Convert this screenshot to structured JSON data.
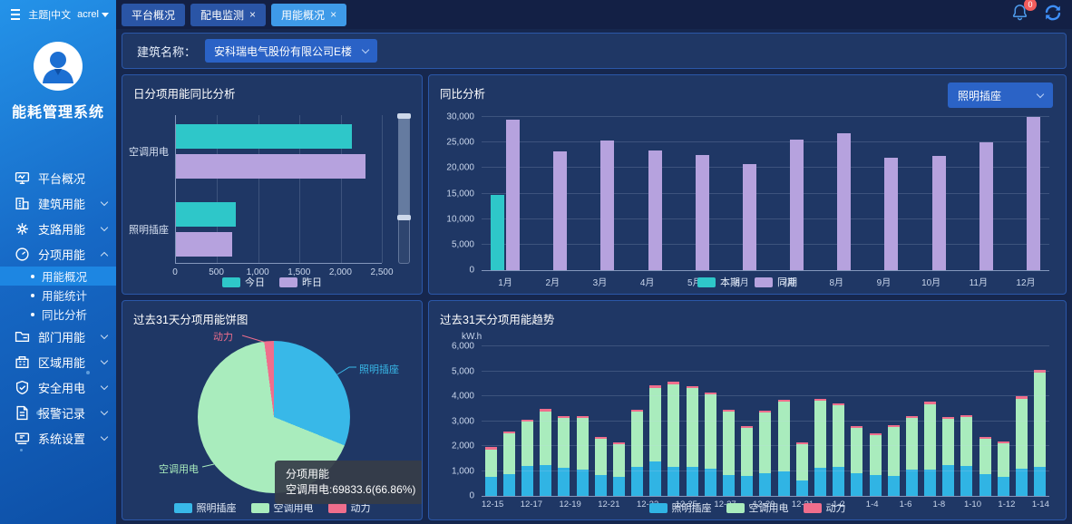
{
  "colors": {
    "teal": "#2EC7C9",
    "purple": "#B6A2DE",
    "sky_blue": "#38B8E8",
    "mint_green": "#A9ECBD",
    "pink": "#EF6E8C",
    "badge_red": "#F25C5C",
    "accent_blue": "#3E9AE8"
  },
  "sidebar": {
    "theme_lang": "主题|中文",
    "user": "acrel",
    "app_title": "能耗管理系统",
    "items": [
      {
        "label": "平台概况"
      },
      {
        "label": "建筑用能"
      },
      {
        "label": "支路用能"
      },
      {
        "label": "分项用能"
      },
      {
        "label": "部门用能"
      },
      {
        "label": "区域用能"
      },
      {
        "label": "安全用电"
      },
      {
        "label": "报警记录"
      },
      {
        "label": "系统设置"
      }
    ],
    "submenu": [
      {
        "label": "用能概况"
      },
      {
        "label": "用能统计"
      },
      {
        "label": "同比分析"
      }
    ]
  },
  "topbar": {
    "tabs": [
      {
        "label": "平台概况"
      },
      {
        "label": "配电监测"
      },
      {
        "label": "用能概况"
      }
    ],
    "notification_count": "0"
  },
  "toolbar": {
    "building_label": "建筑名称：",
    "building_value": "安科瑞电气股份有限公司E楼"
  },
  "chart_data": [
    {
      "type": "bar",
      "orientation": "horizontal",
      "title": "日分项用能同比分析",
      "categories": [
        "空调用电",
        "照明插座"
      ],
      "series": [
        {
          "name": "今日",
          "color": "#2EC7C9",
          "values": [
            2140,
            730
          ]
        },
        {
          "name": "昨日",
          "color": "#B6A2DE",
          "values": [
            2300,
            680
          ]
        }
      ],
      "xlim": [
        0,
        2500
      ],
      "xticks": [
        "0",
        "500",
        "1,000",
        "1,500",
        "2,000",
        "2,500"
      ],
      "datazoom": {
        "start_percent": 0,
        "end_percent": 69
      }
    },
    {
      "type": "bar",
      "title": "同比分析",
      "selector_value": "照明插座",
      "categories": [
        "1月",
        "2月",
        "3月",
        "4月",
        "5月",
        "6月",
        "7月",
        "8月",
        "9月",
        "10月",
        "11月",
        "12月"
      ],
      "series": [
        {
          "name": "本期",
          "color": "#2EC7C9",
          "values": [
            14700,
            null,
            null,
            null,
            null,
            null,
            null,
            null,
            null,
            null,
            null,
            null
          ]
        },
        {
          "name": "同期",
          "color": "#B6A2DE",
          "values": [
            29400,
            23300,
            25400,
            23400,
            22500,
            20800,
            25500,
            26800,
            22000,
            22300,
            25000,
            30000
          ]
        }
      ],
      "ylim": [
        0,
        30000
      ],
      "yticks": [
        "0",
        "5,000",
        "10,000",
        "15,000",
        "20,000",
        "25,000",
        "30,000"
      ]
    },
    {
      "type": "pie",
      "title": "过去31天分项用能饼图",
      "slices": [
        {
          "name": "照明插座",
          "percent": 31.1,
          "color": "#38B8E8"
        },
        {
          "name": "空调用电",
          "percent": 66.86,
          "value": 69833.6,
          "color": "#A9ECBD"
        },
        {
          "name": "动力",
          "percent": 2.04,
          "color": "#EF6E8C"
        }
      ],
      "tooltip": {
        "title": "分项用能",
        "text": "空调用电:69833.6(66.86%)"
      }
    },
    {
      "type": "bar",
      "stacked": true,
      "title": "过去31天分项用能趋势",
      "unit": "kW.h",
      "categories": [
        "12-15",
        "12-16",
        "12-17",
        "12-18",
        "12-19",
        "12-20",
        "12-21",
        "12-22",
        "12-23",
        "12-24",
        "12-25",
        "12-26",
        "12-27",
        "12-28",
        "12-29",
        "12-30",
        "12-31",
        "1-1",
        "1-2",
        "1-3",
        "1-4",
        "1-5",
        "1-6",
        "1-7",
        "1-8",
        "1-9",
        "1-10",
        "1-11",
        "1-12",
        "1-13",
        "1-14"
      ],
      "series": [
        {
          "name": "照明插座",
          "color": "#30B4E4",
          "values": [
            750,
            880,
            1200,
            1250,
            1120,
            1060,
            820,
            780,
            1180,
            1400,
            1150,
            1150,
            1100,
            830,
            800,
            900,
            1000,
            620,
            1120,
            1150,
            920,
            820,
            800,
            1050,
            1070,
            1250,
            1200,
            880,
            750,
            1100,
            1150
          ]
        },
        {
          "name": "空调用电",
          "color": "#A9ECBD",
          "values": [
            1120,
            1640,
            1780,
            2150,
            2010,
            2060,
            1460,
            1290,
            2200,
            2930,
            3330,
            3160,
            2960,
            2550,
            1910,
            2440,
            2770,
            1470,
            2710,
            2470,
            1800,
            1620,
            1950,
            2070,
            2620,
            1830,
            1970,
            1420,
            1350,
            2800,
            3810
          ]
        },
        {
          "name": "动力",
          "color": "#EF6E8C",
          "values": [
            80,
            80,
            80,
            80,
            80,
            80,
            70,
            60,
            80,
            90,
            90,
            90,
            90,
            80,
            80,
            80,
            80,
            70,
            80,
            80,
            80,
            70,
            80,
            80,
            90,
            80,
            80,
            70,
            70,
            90,
            90
          ]
        }
      ],
      "ylim": [
        0,
        6000
      ],
      "yticks": [
        "0",
        "1,000",
        "2,000",
        "3,000",
        "4,000",
        "5,000",
        "6,000"
      ]
    }
  ]
}
